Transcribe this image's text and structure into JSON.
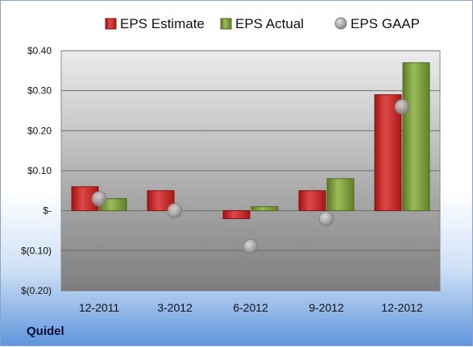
{
  "company": "Quidel",
  "chart_data": {
    "type": "bar",
    "categories": [
      "12-2011",
      "3-2012",
      "6-2012",
      "9-2012",
      "12-2012"
    ],
    "series": [
      {
        "name": "EPS Estimate",
        "kind": "bar",
        "color": "#d42a2a",
        "values": [
          0.06,
          0.05,
          -0.02,
          0.05,
          0.29
        ]
      },
      {
        "name": "EPS Actual",
        "kind": "bar",
        "color": "#7fa040",
        "values": [
          0.03,
          null,
          0.01,
          0.08,
          0.37
        ]
      },
      {
        "name": "EPS GAAP",
        "kind": "marker",
        "color": "#a8a8a8",
        "values": [
          0.03,
          0.0,
          -0.09,
          -0.02,
          0.26
        ]
      }
    ],
    "ylim": [
      -0.2,
      0.4
    ],
    "yticks": [
      0.4,
      0.3,
      0.2,
      0.1,
      0.0,
      -0.1,
      -0.2
    ],
    "ytick_labels": [
      "$0.40",
      "$0.30",
      "$0.20",
      "$0.10",
      "$-",
      "$(0.10)",
      "$(0.20)"
    ],
    "grid": true,
    "legend_position": "top"
  }
}
